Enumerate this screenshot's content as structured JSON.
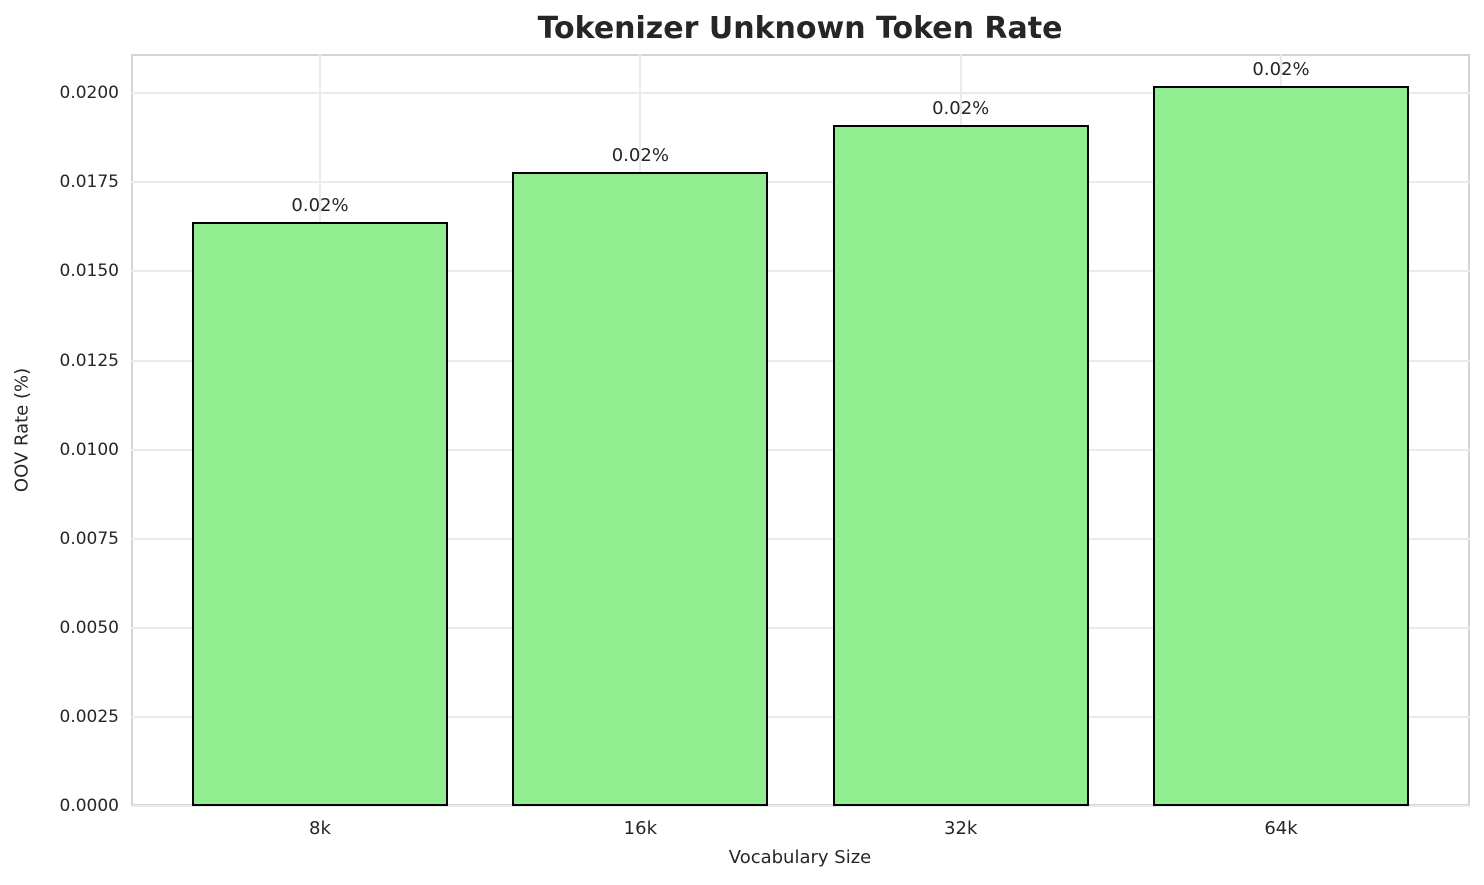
{
  "chart_data": {
    "type": "bar",
    "title": "Tokenizer Unknown Token Rate",
    "xlabel": "Vocabulary Size",
    "ylabel": "OOV Rate (%)",
    "categories": [
      "8k",
      "16k",
      "32k",
      "64k"
    ],
    "values": [
      0.0164,
      0.0178,
      0.0191,
      0.0202
    ],
    "bar_labels": [
      "0.02%",
      "0.02%",
      "0.02%",
      "0.02%"
    ],
    "ylim": [
      0,
      0.0211
    ],
    "yticks": [
      0.0,
      0.0025,
      0.005,
      0.0075,
      0.01,
      0.0125,
      0.015,
      0.0175,
      0.02
    ],
    "ytick_labels": [
      "0.0000",
      "0.0025",
      "0.0050",
      "0.0075",
      "0.0100",
      "0.0125",
      "0.0150",
      "0.0175",
      "0.0200"
    ],
    "grid": true,
    "legend": "none",
    "colors": {
      "bar_fill": "#90ee90",
      "bar_edge": "#000000",
      "grid": "#eaeaea",
      "spine": "#d4d4d4",
      "text": "#262626",
      "background": "#ffffff"
    }
  }
}
